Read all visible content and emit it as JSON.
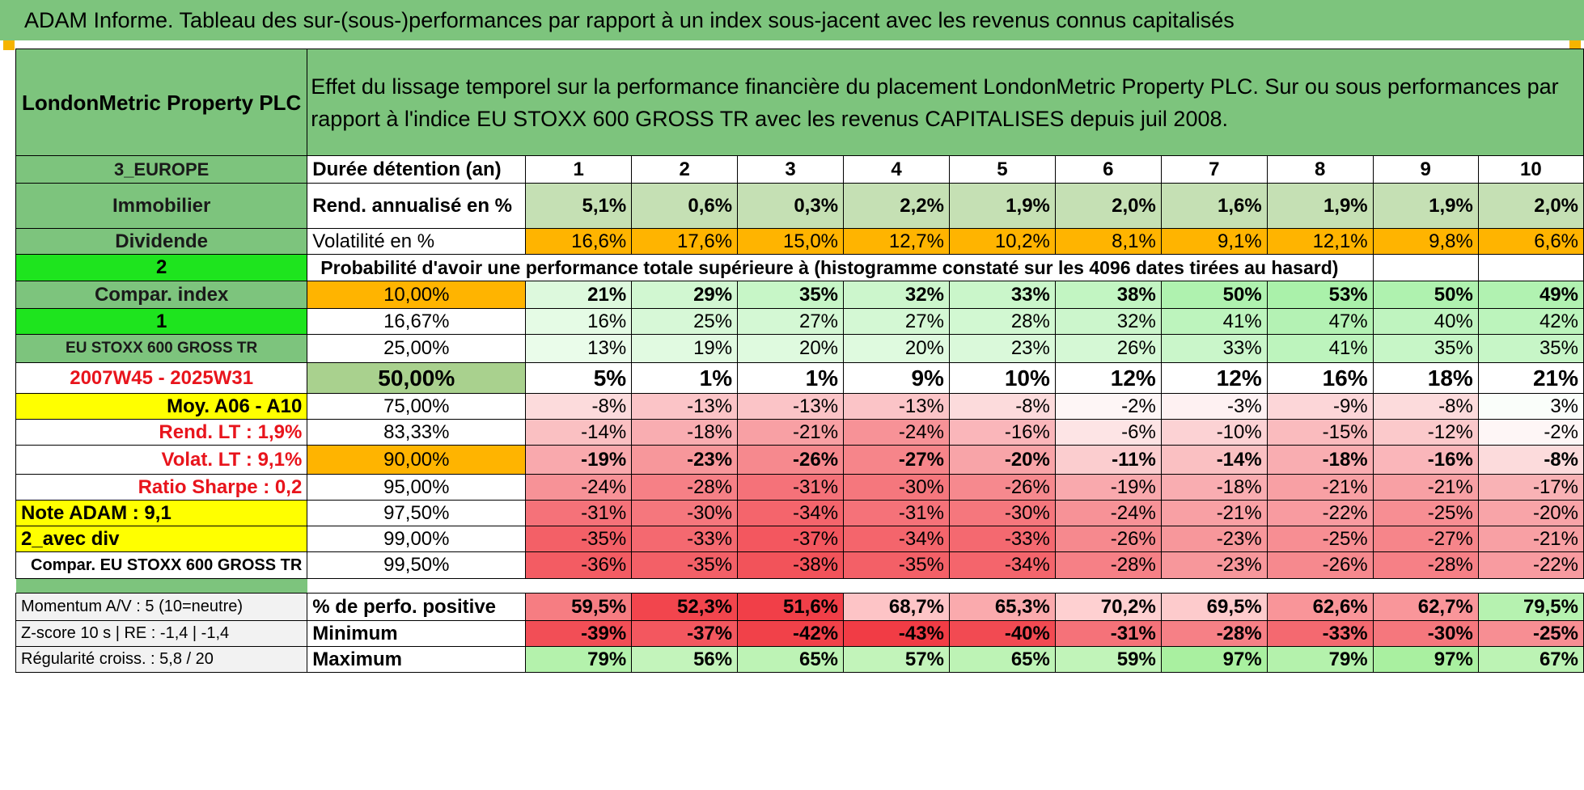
{
  "banner": "ADAM Informe. Tableau des sur-(sous-)performances par rapport à un index sous-jacent avec les revenus connus capitalisés",
  "header": {
    "company": "LondonMetric Property PLC",
    "description": "Effet du lissage temporel sur la performance financière du placement LondonMetric Property PLC. Sur ou sous performances par rapport à l'indice EU STOXX 600 GROSS TR avec les revenus CAPITALISES depuis juil 2008."
  },
  "sidebar": {
    "region": "3_EUROPE",
    "sector": "Immobilier",
    "type": "Dividende",
    "choice1": "2",
    "compar_label": "Compar. index",
    "choice2": "1",
    "index_name": "EU STOXX 600 GROSS TR",
    "period": "2007W45 - 2025W31",
    "moy": "Moy. A06 - A10",
    "rend_lt": "Rend. LT :    1,9%",
    "volat_lt": "Volat. LT :    9,1%",
    "sharpe": "Ratio Sharpe :     0,2",
    "note": "Note ADAM : 9,1",
    "div": "2_avec div",
    "compar_full": "Compar. EU STOXX 600 GROSS TR",
    "momentum": "Momentum A/V : 5 (10=neutre)",
    "zscore": "Z-score 10 s | RE : -1,4 | -1,4",
    "regularite": "Régularité croiss. : 5,8 / 20"
  },
  "summary": {
    "duration_label": "Durée détention (an)",
    "years": [
      "1",
      "2",
      "3",
      "4",
      "5",
      "6",
      "7",
      "8",
      "9",
      "10"
    ],
    "rend_label": "Rend. annualisé en %",
    "rend": [
      "5,1%",
      "0,6%",
      "0,3%",
      "2,2%",
      "1,9%",
      "2,0%",
      "1,6%",
      "1,9%",
      "1,9%",
      "2,0%"
    ],
    "vol_label": "Volatilité en %",
    "vol": [
      "16,6%",
      "17,6%",
      "15,0%",
      "12,7%",
      "10,2%",
      "8,1%",
      "9,1%",
      "12,1%",
      "9,8%",
      "6,6%"
    ]
  },
  "prob_title": "Probabilité d'avoir une performance totale supérieure à (histogramme constaté sur les 4096 dates tirées au hasard)",
  "prob_rows": [
    {
      "threshold": "10,00%",
      "values": [
        "21%",
        "29%",
        "35%",
        "32%",
        "33%",
        "38%",
        "50%",
        "53%",
        "50%",
        "49%"
      ]
    },
    {
      "threshold": "16,67%",
      "values": [
        "16%",
        "25%",
        "27%",
        "27%",
        "28%",
        "32%",
        "41%",
        "47%",
        "40%",
        "42%"
      ]
    },
    {
      "threshold": "25,00%",
      "values": [
        "13%",
        "19%",
        "20%",
        "20%",
        "23%",
        "26%",
        "33%",
        "41%",
        "35%",
        "35%"
      ]
    },
    {
      "threshold": "50,00%",
      "values": [
        "5%",
        "1%",
        "1%",
        "9%",
        "10%",
        "12%",
        "12%",
        "16%",
        "18%",
        "21%"
      ]
    },
    {
      "threshold": "75,00%",
      "values": [
        "-8%",
        "-13%",
        "-13%",
        "-13%",
        "-8%",
        "-2%",
        "-3%",
        "-9%",
        "-8%",
        "3%"
      ]
    },
    {
      "threshold": "83,33%",
      "values": [
        "-14%",
        "-18%",
        "-21%",
        "-24%",
        "-16%",
        "-6%",
        "-10%",
        "-15%",
        "-12%",
        "-2%"
      ]
    },
    {
      "threshold": "90,00%",
      "values": [
        "-19%",
        "-23%",
        "-26%",
        "-27%",
        "-20%",
        "-11%",
        "-14%",
        "-18%",
        "-16%",
        "-8%"
      ]
    },
    {
      "threshold": "95,00%",
      "values": [
        "-24%",
        "-28%",
        "-31%",
        "-30%",
        "-26%",
        "-19%",
        "-18%",
        "-21%",
        "-21%",
        "-17%"
      ]
    },
    {
      "threshold": "97,50%",
      "values": [
        "-31%",
        "-30%",
        "-34%",
        "-31%",
        "-30%",
        "-24%",
        "-21%",
        "-22%",
        "-25%",
        "-20%"
      ]
    },
    {
      "threshold": "99,00%",
      "values": [
        "-35%",
        "-33%",
        "-37%",
        "-34%",
        "-33%",
        "-26%",
        "-23%",
        "-25%",
        "-27%",
        "-21%"
      ]
    },
    {
      "threshold": "99,50%",
      "values": [
        "-36%",
        "-35%",
        "-38%",
        "-35%",
        "-34%",
        "-28%",
        "-23%",
        "-26%",
        "-28%",
        "-22%"
      ]
    }
  ],
  "stats": [
    {
      "label": "% de perfo. positive",
      "values": [
        "59,5%",
        "52,3%",
        "51,6%",
        "68,7%",
        "65,3%",
        "70,2%",
        "69,5%",
        "62,6%",
        "62,7%",
        "79,5%"
      ]
    },
    {
      "label": "Minimum",
      "values": [
        "-39%",
        "-37%",
        "-42%",
        "-43%",
        "-40%",
        "-31%",
        "-28%",
        "-33%",
        "-30%",
        "-25%"
      ]
    },
    {
      "label": "Maximum",
      "values": [
        "79%",
        "56%",
        "65%",
        "57%",
        "65%",
        "59%",
        "97%",
        "79%",
        "97%",
        "67%"
      ]
    }
  ],
  "colors": {
    "header_green": "#7dc47d",
    "bright_green": "#1ee41e",
    "yellow": "#ffff00",
    "orange": "#ffb400",
    "light_green": "#a9d18e",
    "red_text": "#e8141c"
  }
}
